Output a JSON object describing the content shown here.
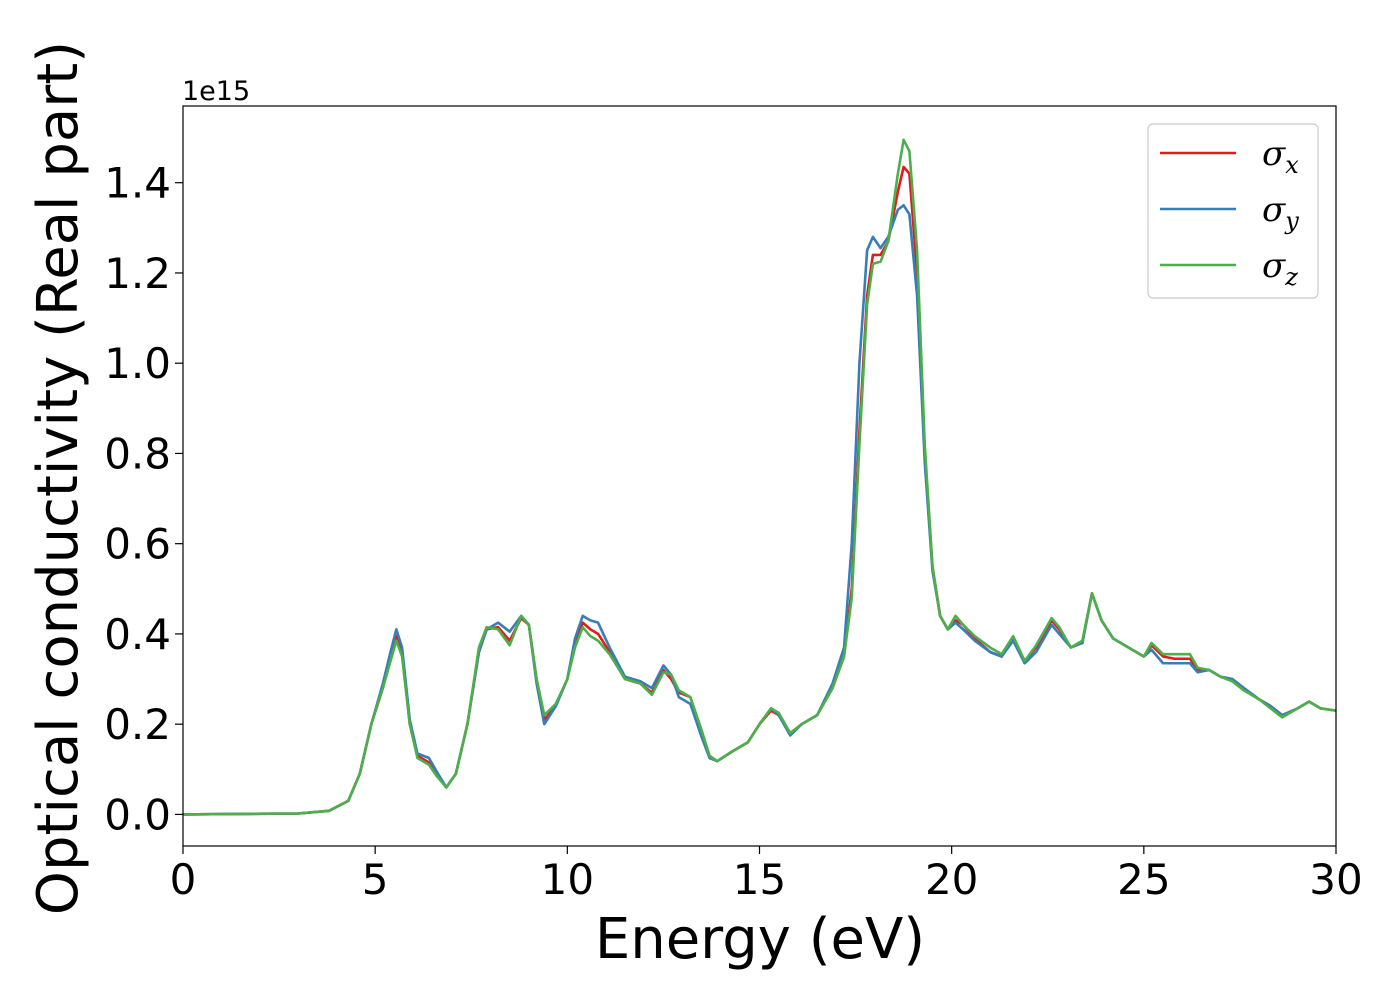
{
  "chart_data": {
    "type": "line",
    "xlabel": "Energy (eV)",
    "ylabel": "Optical conductivity (Real part)",
    "y_offset_label": "1e15",
    "xlim": [
      0,
      30
    ],
    "ylim": [
      -0.07,
      1.57
    ],
    "x_ticks": [
      0,
      5,
      10,
      15,
      20,
      25,
      30
    ],
    "x_tick_labels": [
      "0",
      "5",
      "10",
      "15",
      "20",
      "25",
      "30"
    ],
    "y_ticks": [
      0.0,
      0.2,
      0.4,
      0.6,
      0.8,
      1.0,
      1.2,
      1.4
    ],
    "y_tick_labels": [
      "0.0",
      "0.2",
      "0.4",
      "0.6",
      "0.8",
      "1.0",
      "1.2",
      "1.4"
    ],
    "grid": false,
    "legend_position": "top-right",
    "legend": {
      "entries": [
        {
          "symbol": "σ",
          "sub": "x",
          "color": "#e41a1c"
        },
        {
          "symbol": "σ",
          "sub": "y",
          "color": "#377eb8"
        },
        {
          "symbol": "σ",
          "sub": "z",
          "color": "#4daf4a"
        }
      ]
    },
    "series": [
      {
        "color": "#e41a1c",
        "points": [
          [
            0,
            0
          ],
          [
            3,
            0.002
          ],
          [
            3.8,
            0.008
          ],
          [
            4.3,
            0.03
          ],
          [
            4.6,
            0.09
          ],
          [
            4.9,
            0.2
          ],
          [
            5.2,
            0.28
          ],
          [
            5.4,
            0.35
          ],
          [
            5.55,
            0.395
          ],
          [
            5.7,
            0.36
          ],
          [
            5.9,
            0.2
          ],
          [
            6.1,
            0.13
          ],
          [
            6.4,
            0.115
          ],
          [
            6.6,
            0.09
          ],
          [
            6.85,
            0.06
          ],
          [
            7.1,
            0.09
          ],
          [
            7.4,
            0.2
          ],
          [
            7.7,
            0.36
          ],
          [
            7.9,
            0.41
          ],
          [
            8.2,
            0.415
          ],
          [
            8.5,
            0.385
          ],
          [
            8.8,
            0.435
          ],
          [
            9.0,
            0.42
          ],
          [
            9.2,
            0.3
          ],
          [
            9.4,
            0.21
          ],
          [
            9.7,
            0.24
          ],
          [
            10.0,
            0.3
          ],
          [
            10.2,
            0.38
          ],
          [
            10.4,
            0.425
          ],
          [
            10.6,
            0.41
          ],
          [
            10.8,
            0.4
          ],
          [
            11.1,
            0.36
          ],
          [
            11.5,
            0.3
          ],
          [
            11.9,
            0.29
          ],
          [
            12.2,
            0.27
          ],
          [
            12.5,
            0.32
          ],
          [
            12.7,
            0.3
          ],
          [
            12.9,
            0.27
          ],
          [
            13.2,
            0.26
          ],
          [
            13.5,
            0.18
          ],
          [
            13.7,
            0.13
          ],
          [
            13.9,
            0.118
          ],
          [
            14.3,
            0.14
          ],
          [
            14.7,
            0.16
          ],
          [
            15.0,
            0.2
          ],
          [
            15.3,
            0.23
          ],
          [
            15.5,
            0.22
          ],
          [
            15.8,
            0.18
          ],
          [
            16.1,
            0.2
          ],
          [
            16.5,
            0.22
          ],
          [
            16.9,
            0.28
          ],
          [
            17.2,
            0.35
          ],
          [
            17.4,
            0.5
          ],
          [
            17.6,
            0.85
          ],
          [
            17.8,
            1.15
          ],
          [
            17.95,
            1.24
          ],
          [
            18.15,
            1.24
          ],
          [
            18.35,
            1.27
          ],
          [
            18.6,
            1.38
          ],
          [
            18.75,
            1.435
          ],
          [
            18.9,
            1.42
          ],
          [
            19.1,
            1.2
          ],
          [
            19.3,
            0.8
          ],
          [
            19.5,
            0.55
          ],
          [
            19.7,
            0.44
          ],
          [
            19.9,
            0.41
          ],
          [
            20.1,
            0.43
          ],
          [
            20.3,
            0.42
          ],
          [
            20.6,
            0.39
          ],
          [
            21.0,
            0.36
          ],
          [
            21.3,
            0.35
          ],
          [
            21.6,
            0.39
          ],
          [
            21.9,
            0.34
          ],
          [
            22.2,
            0.37
          ],
          [
            22.6,
            0.43
          ],
          [
            22.8,
            0.41
          ],
          [
            23.1,
            0.37
          ],
          [
            23.4,
            0.38
          ],
          [
            23.65,
            0.49
          ],
          [
            23.9,
            0.43
          ],
          [
            24.2,
            0.39
          ],
          [
            24.6,
            0.37
          ],
          [
            25.0,
            0.35
          ],
          [
            25.2,
            0.375
          ],
          [
            25.5,
            0.35
          ],
          [
            25.8,
            0.345
          ],
          [
            26.2,
            0.345
          ],
          [
            26.4,
            0.32
          ],
          [
            26.7,
            0.32
          ],
          [
            27.0,
            0.305
          ],
          [
            27.3,
            0.3
          ],
          [
            27.6,
            0.28
          ],
          [
            28.0,
            0.255
          ],
          [
            28.3,
            0.24
          ],
          [
            28.6,
            0.22
          ],
          [
            29.0,
            0.235
          ],
          [
            29.3,
            0.25
          ],
          [
            29.6,
            0.235
          ],
          [
            30.0,
            0.23
          ]
        ]
      },
      {
        "color": "#377eb8",
        "points": [
          [
            0,
            0
          ],
          [
            3,
            0.002
          ],
          [
            3.8,
            0.008
          ],
          [
            4.3,
            0.03
          ],
          [
            4.6,
            0.09
          ],
          [
            4.9,
            0.2
          ],
          [
            5.2,
            0.29
          ],
          [
            5.4,
            0.36
          ],
          [
            5.55,
            0.41
          ],
          [
            5.7,
            0.37
          ],
          [
            5.9,
            0.21
          ],
          [
            6.1,
            0.135
          ],
          [
            6.4,
            0.125
          ],
          [
            6.6,
            0.095
          ],
          [
            6.85,
            0.06
          ],
          [
            7.1,
            0.09
          ],
          [
            7.4,
            0.2
          ],
          [
            7.7,
            0.36
          ],
          [
            7.9,
            0.41
          ],
          [
            8.2,
            0.425
          ],
          [
            8.5,
            0.405
          ],
          [
            8.8,
            0.44
          ],
          [
            9.0,
            0.42
          ],
          [
            9.2,
            0.29
          ],
          [
            9.4,
            0.2
          ],
          [
            9.7,
            0.24
          ],
          [
            10.0,
            0.3
          ],
          [
            10.2,
            0.39
          ],
          [
            10.4,
            0.44
          ],
          [
            10.6,
            0.43
          ],
          [
            10.8,
            0.425
          ],
          [
            11.1,
            0.37
          ],
          [
            11.5,
            0.305
          ],
          [
            11.9,
            0.295
          ],
          [
            12.2,
            0.28
          ],
          [
            12.5,
            0.33
          ],
          [
            12.7,
            0.31
          ],
          [
            12.9,
            0.26
          ],
          [
            13.2,
            0.245
          ],
          [
            13.5,
            0.17
          ],
          [
            13.7,
            0.125
          ],
          [
            13.9,
            0.118
          ],
          [
            14.3,
            0.14
          ],
          [
            14.7,
            0.16
          ],
          [
            15.0,
            0.2
          ],
          [
            15.3,
            0.235
          ],
          [
            15.5,
            0.22
          ],
          [
            15.8,
            0.175
          ],
          [
            16.1,
            0.2
          ],
          [
            16.5,
            0.22
          ],
          [
            16.9,
            0.29
          ],
          [
            17.2,
            0.37
          ],
          [
            17.4,
            0.6
          ],
          [
            17.6,
            1.0
          ],
          [
            17.8,
            1.25
          ],
          [
            17.95,
            1.28
          ],
          [
            18.15,
            1.255
          ],
          [
            18.35,
            1.28
          ],
          [
            18.6,
            1.34
          ],
          [
            18.75,
            1.35
          ],
          [
            18.9,
            1.33
          ],
          [
            19.1,
            1.15
          ],
          [
            19.3,
            0.78
          ],
          [
            19.5,
            0.54
          ],
          [
            19.7,
            0.44
          ],
          [
            19.9,
            0.41
          ],
          [
            20.1,
            0.425
          ],
          [
            20.3,
            0.41
          ],
          [
            20.6,
            0.385
          ],
          [
            21.0,
            0.36
          ],
          [
            21.3,
            0.35
          ],
          [
            21.6,
            0.385
          ],
          [
            21.9,
            0.335
          ],
          [
            22.2,
            0.36
          ],
          [
            22.6,
            0.42
          ],
          [
            22.8,
            0.4
          ],
          [
            23.1,
            0.37
          ],
          [
            23.4,
            0.38
          ],
          [
            23.65,
            0.49
          ],
          [
            23.9,
            0.43
          ],
          [
            24.2,
            0.39
          ],
          [
            24.6,
            0.37
          ],
          [
            25.0,
            0.35
          ],
          [
            25.2,
            0.365
          ],
          [
            25.5,
            0.335
          ],
          [
            25.8,
            0.335
          ],
          [
            26.2,
            0.335
          ],
          [
            26.4,
            0.315
          ],
          [
            26.7,
            0.32
          ],
          [
            27.0,
            0.305
          ],
          [
            27.3,
            0.3
          ],
          [
            27.6,
            0.28
          ],
          [
            28.0,
            0.255
          ],
          [
            28.3,
            0.24
          ],
          [
            28.6,
            0.22
          ],
          [
            29.0,
            0.235
          ],
          [
            29.3,
            0.25
          ],
          [
            29.6,
            0.235
          ],
          [
            30.0,
            0.23
          ]
        ]
      },
      {
        "color": "#4daf4a",
        "points": [
          [
            0,
            0
          ],
          [
            3,
            0.002
          ],
          [
            3.8,
            0.008
          ],
          [
            4.3,
            0.03
          ],
          [
            4.6,
            0.09
          ],
          [
            4.9,
            0.2
          ],
          [
            5.2,
            0.28
          ],
          [
            5.4,
            0.34
          ],
          [
            5.55,
            0.385
          ],
          [
            5.7,
            0.35
          ],
          [
            5.9,
            0.2
          ],
          [
            6.1,
            0.125
          ],
          [
            6.4,
            0.11
          ],
          [
            6.6,
            0.085
          ],
          [
            6.85,
            0.06
          ],
          [
            7.1,
            0.09
          ],
          [
            7.4,
            0.2
          ],
          [
            7.7,
            0.37
          ],
          [
            7.9,
            0.415
          ],
          [
            8.2,
            0.41
          ],
          [
            8.5,
            0.375
          ],
          [
            8.8,
            0.44
          ],
          [
            9.0,
            0.42
          ],
          [
            9.2,
            0.3
          ],
          [
            9.4,
            0.22
          ],
          [
            9.7,
            0.245
          ],
          [
            10.0,
            0.3
          ],
          [
            10.2,
            0.37
          ],
          [
            10.4,
            0.415
          ],
          [
            10.6,
            0.395
          ],
          [
            10.8,
            0.385
          ],
          [
            11.1,
            0.355
          ],
          [
            11.5,
            0.3
          ],
          [
            11.9,
            0.29
          ],
          [
            12.2,
            0.265
          ],
          [
            12.5,
            0.315
          ],
          [
            12.7,
            0.31
          ],
          [
            12.9,
            0.275
          ],
          [
            13.2,
            0.26
          ],
          [
            13.5,
            0.185
          ],
          [
            13.7,
            0.13
          ],
          [
            13.9,
            0.118
          ],
          [
            14.3,
            0.14
          ],
          [
            14.7,
            0.16
          ],
          [
            15.0,
            0.2
          ],
          [
            15.3,
            0.235
          ],
          [
            15.5,
            0.225
          ],
          [
            15.8,
            0.18
          ],
          [
            16.1,
            0.2
          ],
          [
            16.5,
            0.22
          ],
          [
            16.9,
            0.28
          ],
          [
            17.2,
            0.35
          ],
          [
            17.4,
            0.48
          ],
          [
            17.6,
            0.82
          ],
          [
            17.8,
            1.13
          ],
          [
            17.95,
            1.22
          ],
          [
            18.15,
            1.225
          ],
          [
            18.35,
            1.27
          ],
          [
            18.6,
            1.42
          ],
          [
            18.75,
            1.495
          ],
          [
            18.9,
            1.47
          ],
          [
            19.1,
            1.25
          ],
          [
            19.3,
            0.82
          ],
          [
            19.5,
            0.55
          ],
          [
            19.7,
            0.44
          ],
          [
            19.9,
            0.41
          ],
          [
            20.1,
            0.44
          ],
          [
            20.3,
            0.42
          ],
          [
            20.6,
            0.395
          ],
          [
            21.0,
            0.37
          ],
          [
            21.3,
            0.355
          ],
          [
            21.6,
            0.395
          ],
          [
            21.9,
            0.34
          ],
          [
            22.2,
            0.375
          ],
          [
            22.6,
            0.435
          ],
          [
            22.8,
            0.415
          ],
          [
            23.1,
            0.37
          ],
          [
            23.4,
            0.385
          ],
          [
            23.65,
            0.49
          ],
          [
            23.9,
            0.43
          ],
          [
            24.2,
            0.39
          ],
          [
            24.6,
            0.37
          ],
          [
            25.0,
            0.35
          ],
          [
            25.2,
            0.38
          ],
          [
            25.5,
            0.355
          ],
          [
            25.8,
            0.355
          ],
          [
            26.2,
            0.355
          ],
          [
            26.4,
            0.325
          ],
          [
            26.7,
            0.32
          ],
          [
            27.0,
            0.305
          ],
          [
            27.3,
            0.295
          ],
          [
            27.6,
            0.275
          ],
          [
            28.0,
            0.255
          ],
          [
            28.3,
            0.235
          ],
          [
            28.6,
            0.215
          ],
          [
            29.0,
            0.235
          ],
          [
            29.3,
            0.25
          ],
          [
            29.6,
            0.235
          ],
          [
            30.0,
            0.23
          ]
        ]
      }
    ]
  }
}
